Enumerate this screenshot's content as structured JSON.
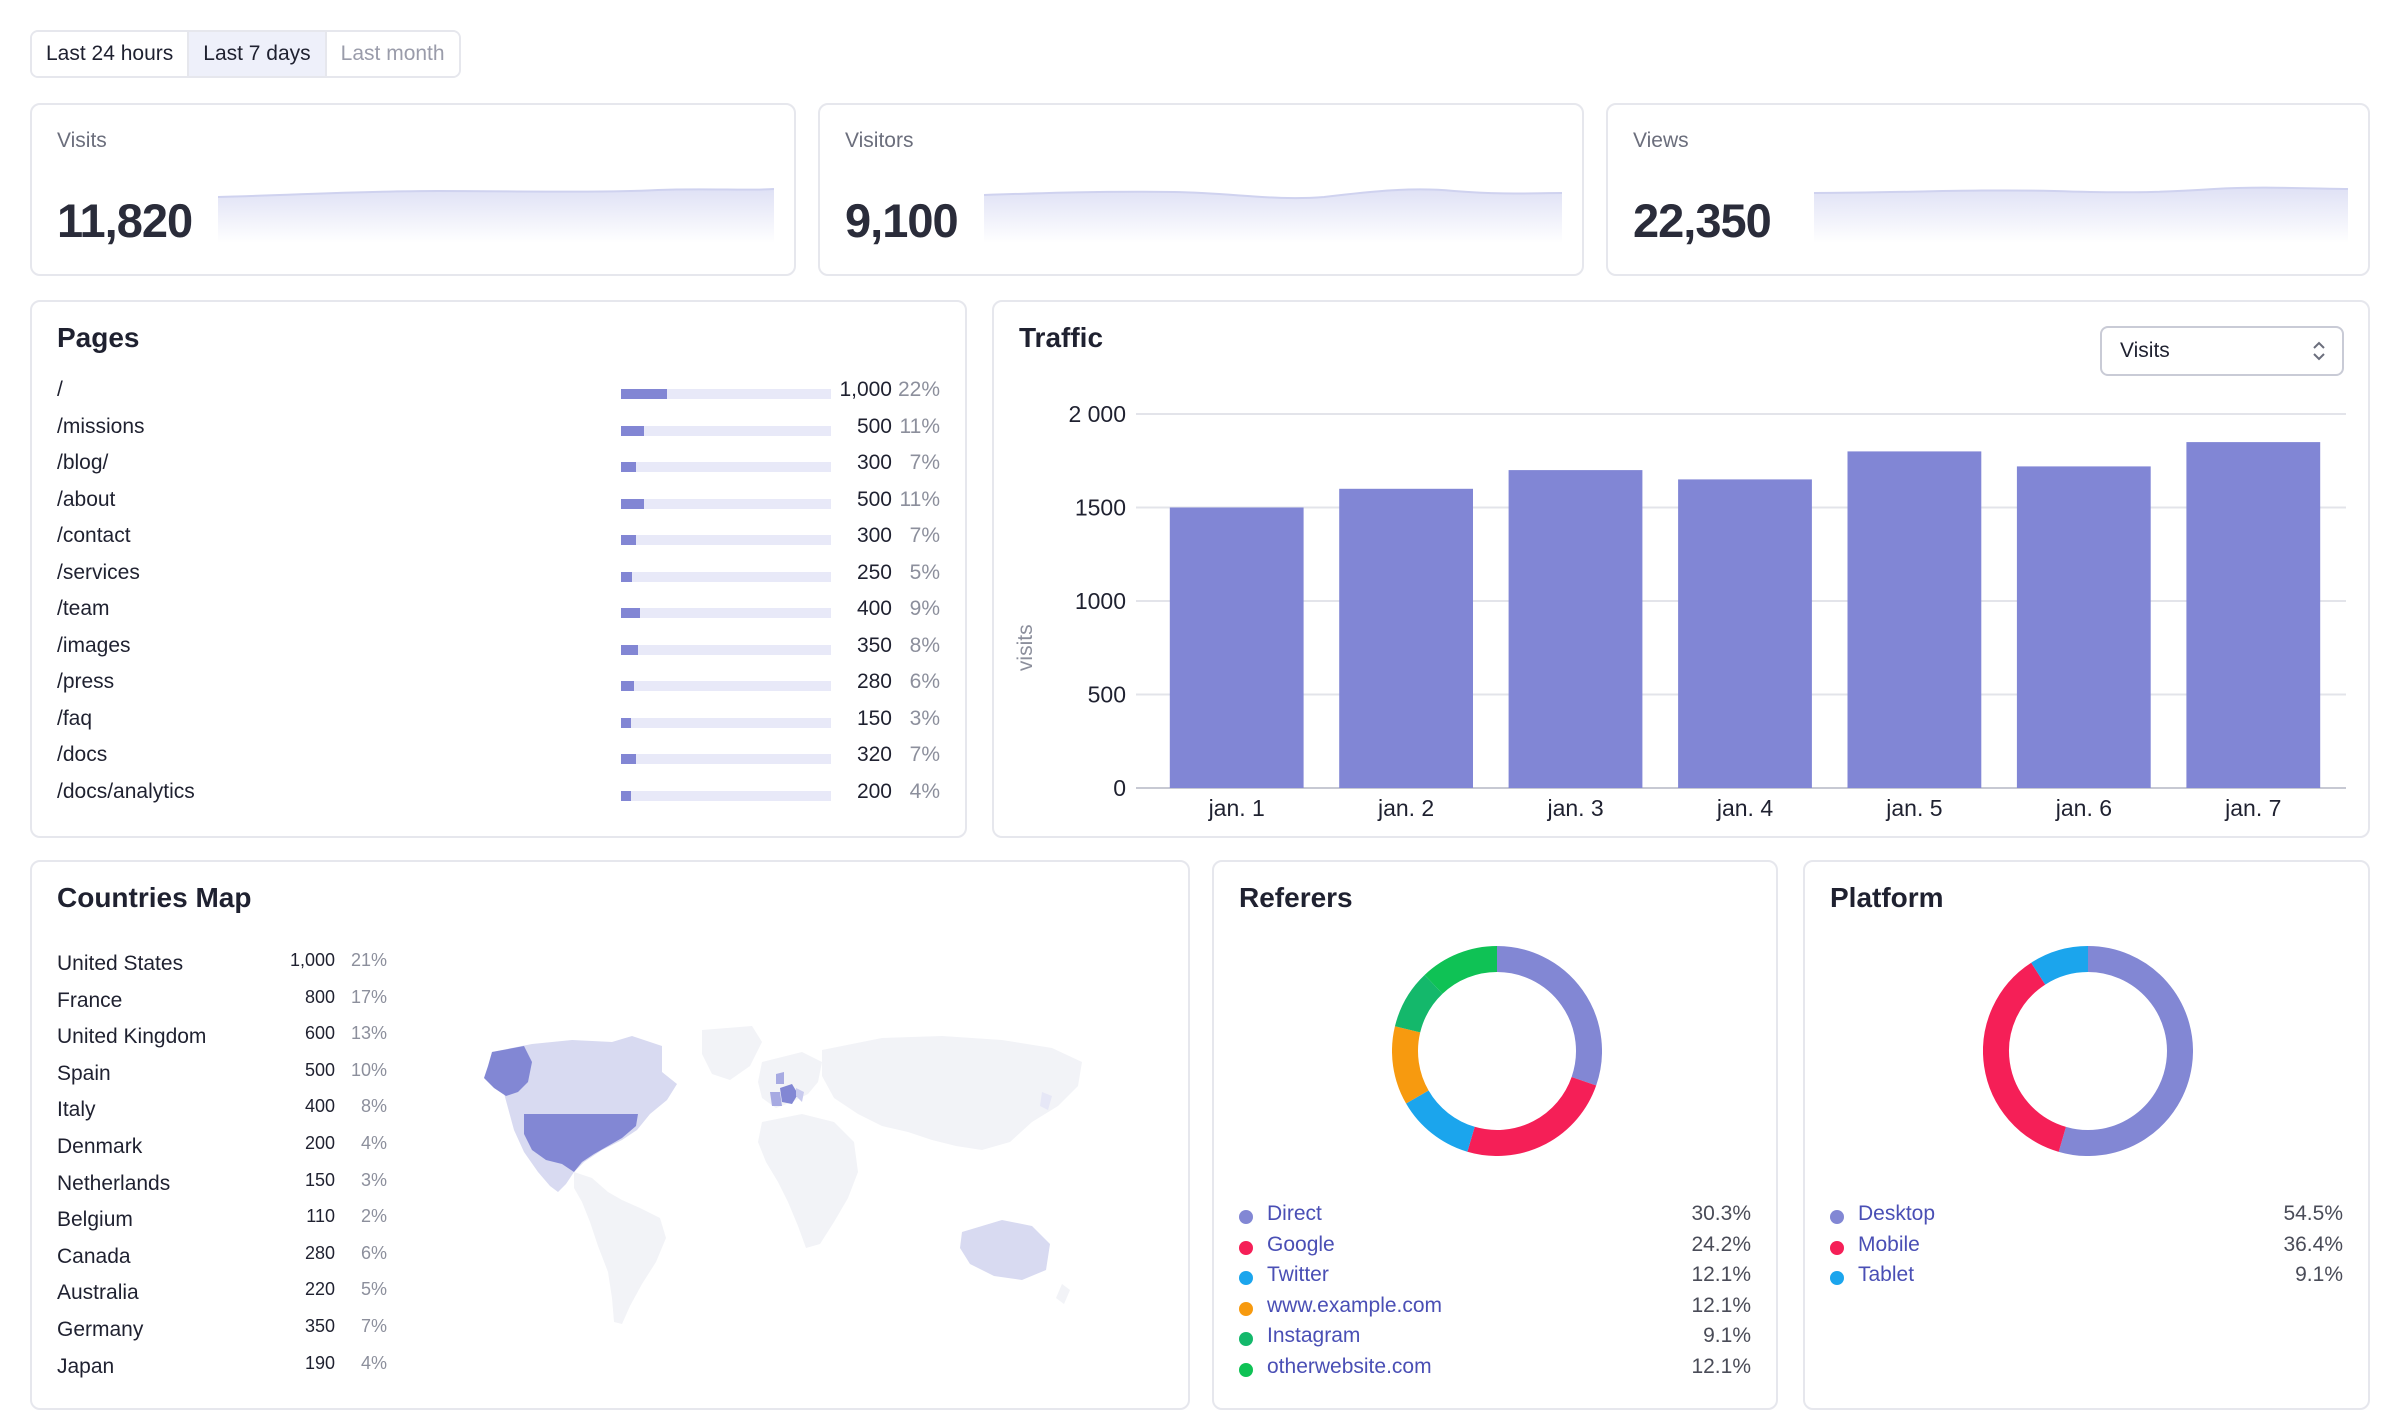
{
  "range_tabs": [
    {
      "label": "Last 24 hours",
      "state": "default"
    },
    {
      "label": "Last 7 days",
      "state": "active"
    },
    {
      "label": "Last month",
      "state": "muted"
    }
  ],
  "stats": [
    {
      "label": "Visits",
      "value": "11,820"
    },
    {
      "label": "Visitors",
      "value": "9,100"
    },
    {
      "label": "Views",
      "value": "22,350"
    }
  ],
  "pages": {
    "title": "Pages",
    "rows": [
      {
        "path": "/",
        "value": "1,000",
        "pct": "22%",
        "share": 0.22
      },
      {
        "path": "/missions",
        "value": "500",
        "pct": "11%",
        "share": 0.11
      },
      {
        "path": "/blog/",
        "value": "300",
        "pct": "7%",
        "share": 0.07
      },
      {
        "path": "/about",
        "value": "500",
        "pct": "11%",
        "share": 0.11
      },
      {
        "path": "/contact",
        "value": "300",
        "pct": "7%",
        "share": 0.07
      },
      {
        "path": "/services",
        "value": "250",
        "pct": "5%",
        "share": 0.05
      },
      {
        "path": "/team",
        "value": "400",
        "pct": "9%",
        "share": 0.09
      },
      {
        "path": "/images",
        "value": "350",
        "pct": "8%",
        "share": 0.08
      },
      {
        "path": "/press",
        "value": "280",
        "pct": "6%",
        "share": 0.06
      },
      {
        "path": "/faq",
        "value": "150",
        "pct": "3%",
        "share": 0.03
      },
      {
        "path": "/docs",
        "value": "320",
        "pct": "7%",
        "share": 0.07
      },
      {
        "path": "/docs/analytics",
        "value": "200",
        "pct": "4%",
        "share": 0.04
      }
    ]
  },
  "traffic": {
    "title": "Traffic",
    "metric_select": "Visits"
  },
  "chart_data": {
    "type": "bar",
    "categories": [
      "jan. 1",
      "jan. 2",
      "jan. 3",
      "jan. 4",
      "jan. 5",
      "jan. 6",
      "jan. 7"
    ],
    "values": [
      1500,
      1600,
      1700,
      1650,
      1800,
      1720,
      1850
    ],
    "ylabel": "visits",
    "yticks": [
      "0",
      "500",
      "1000",
      "1500",
      "2 000"
    ],
    "ytick_values": [
      0,
      500,
      1000,
      1500,
      2000
    ],
    "ylim": [
      0,
      2000
    ],
    "grid": true,
    "color": "#8186d5"
  },
  "countries": {
    "title": "Countries Map",
    "rows": [
      {
        "name": "United States",
        "value": "1,000",
        "pct": "21%"
      },
      {
        "name": "France",
        "value": "800",
        "pct": "17%"
      },
      {
        "name": "United Kingdom",
        "value": "600",
        "pct": "13%"
      },
      {
        "name": "Spain",
        "value": "500",
        "pct": "10%"
      },
      {
        "name": "Italy",
        "value": "400",
        "pct": "8%"
      },
      {
        "name": "Denmark",
        "value": "200",
        "pct": "4%"
      },
      {
        "name": "Netherlands",
        "value": "150",
        "pct": "3%"
      },
      {
        "name": "Belgium",
        "value": "110",
        "pct": "2%"
      },
      {
        "name": "Canada",
        "value": "280",
        "pct": "6%"
      },
      {
        "name": "Australia",
        "value": "220",
        "pct": "5%"
      },
      {
        "name": "Germany",
        "value": "350",
        "pct": "7%"
      },
      {
        "name": "Japan",
        "value": "190",
        "pct": "4%"
      }
    ]
  },
  "referers": {
    "title": "Referers",
    "items": [
      {
        "name": "Direct",
        "pct": "30.3%",
        "value": 30.3,
        "color": "#8287d4"
      },
      {
        "name": "Google",
        "pct": "24.2%",
        "value": 24.2,
        "color": "#f51f57"
      },
      {
        "name": "Twitter",
        "pct": "12.1%",
        "value": 12.1,
        "color": "#1ba5ed"
      },
      {
        "name": "www.example.com",
        "pct": "12.1%",
        "value": 12.1,
        "color": "#f79a0f"
      },
      {
        "name": "Instagram",
        "pct": "9.1%",
        "value": 9.1,
        "color": "#14b86b"
      },
      {
        "name": "otherwebsite.com",
        "pct": "12.1%",
        "value": 12.1,
        "color": "#0fc255"
      }
    ]
  },
  "platform": {
    "title": "Platform",
    "items": [
      {
        "name": "Desktop",
        "pct": "54.5%",
        "value": 54.5,
        "color": "#8287d4"
      },
      {
        "name": "Mobile",
        "pct": "36.4%",
        "value": 36.4,
        "color": "#f51f57"
      },
      {
        "name": "Tablet",
        "pct": "9.1%",
        "value": 9.1,
        "color": "#1ba5ed"
      }
    ]
  }
}
